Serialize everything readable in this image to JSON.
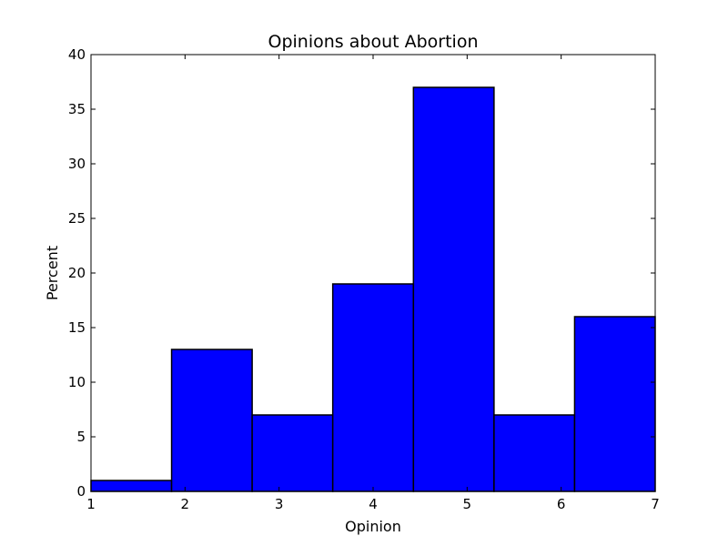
{
  "chart_data": {
    "type": "bar",
    "title": "Opinions about Abortion",
    "xlabel": "Opinion",
    "ylabel": "Percent",
    "xlim": [
      1,
      7
    ],
    "ylim": [
      0,
      40
    ],
    "xticks": [
      "1",
      "2",
      "3",
      "4",
      "5",
      "6",
      "7"
    ],
    "yticks": [
      "0",
      "5",
      "10",
      "15",
      "20",
      "25",
      "30",
      "35",
      "40"
    ],
    "bins": [
      {
        "x0": 1.0,
        "x1": 1.857,
        "value": 1
      },
      {
        "x0": 1.857,
        "x1": 2.714,
        "value": 13
      },
      {
        "x0": 2.714,
        "x1": 3.571,
        "value": 7
      },
      {
        "x0": 3.571,
        "x1": 4.429,
        "value": 19
      },
      {
        "x0": 4.429,
        "x1": 5.286,
        "value": 37
      },
      {
        "x0": 5.286,
        "x1": 6.143,
        "value": 7
      },
      {
        "x0": 6.143,
        "x1": 7.0,
        "value": 16
      }
    ],
    "bar_color": "#0000ff",
    "edge_color": "#000000",
    "grid": false,
    "legend": "none"
  }
}
